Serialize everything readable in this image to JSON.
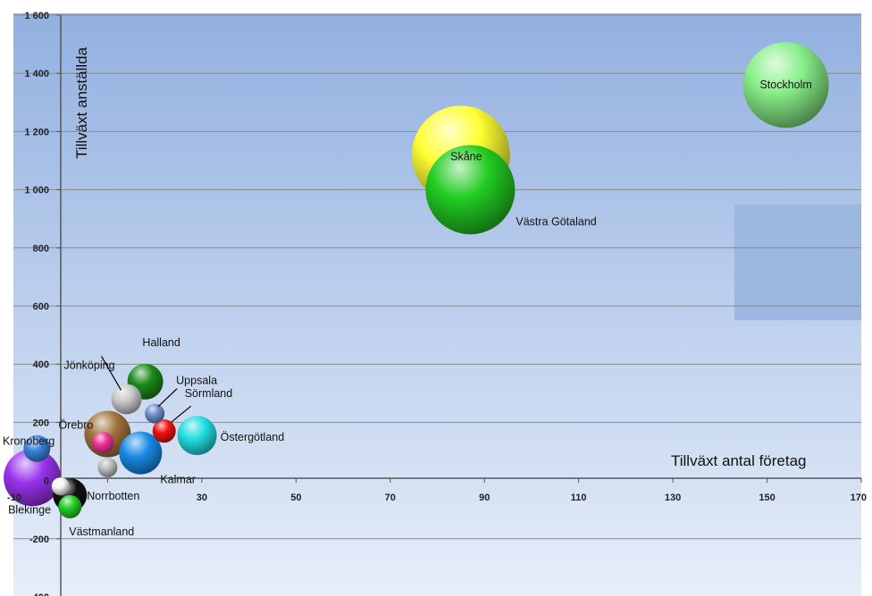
{
  "chart_data": {
    "type": "bubble",
    "title": "",
    "xlabel": "Tillväxt antal företag",
    "ylabel": "Tillväxt anställda",
    "xlim": [
      -10,
      170
    ],
    "ylim": [
      -400,
      1600
    ],
    "x_ticks": [
      -10,
      10,
      30,
      50,
      70,
      90,
      110,
      130,
      150,
      170
    ],
    "y_ticks": [
      -400,
      -200,
      0,
      200,
      400,
      600,
      800,
      1000,
      1200,
      1400,
      1600
    ],
    "x_tick_labels": [
      "-10",
      "",
      "30",
      "50",
      "70",
      "90",
      "110",
      "130",
      "150",
      "170"
    ],
    "y_tick_labels": [
      "-400",
      "-200",
      "0",
      "200",
      "400",
      "600",
      "800",
      "1 000",
      "1 200",
      "1 400",
      "1 600"
    ],
    "grid": true,
    "legend": "none",
    "points": [
      {
        "label": "Stockholm",
        "x": 154,
        "y": 1360,
        "size": 48,
        "color": "#88ee88"
      },
      {
        "label": "Västra Götaland",
        "x": 87,
        "y": 1000,
        "size": 50,
        "color": "#22cc22"
      },
      {
        "label": "Skåne",
        "x": 85,
        "y": 1120,
        "size": 55,
        "color": "#ffff33"
      },
      {
        "label": "Halland",
        "x": 18,
        "y": 340,
        "size": 20,
        "color": "#1a8a1a"
      },
      {
        "label": "Jönköping",
        "x": 14,
        "y": 280,
        "size": 17,
        "color": "#c8c8c8"
      },
      {
        "label": "Uppsala",
        "x": 20,
        "y": 230,
        "size": 11,
        "color": "#6a8fc8"
      },
      {
        "label": "Sörmland",
        "x": 22,
        "y": 170,
        "size": 13,
        "color": "#ee1111"
      },
      {
        "label": "Östergötland",
        "x": 29,
        "y": 155,
        "size": 22,
        "color": "#22dde0"
      },
      {
        "label": "Örebro",
        "x": 10,
        "y": 160,
        "size": 26,
        "color": "#a0723a"
      },
      {
        "label": "Kalmar",
        "x": 17,
        "y": 95,
        "size": 24,
        "color": "#1a8ae6"
      },
      {
        "label": "Kronoberg",
        "x": -5,
        "y": 110,
        "size": 15,
        "color": "#3a82d8"
      },
      {
        "label": "Blekinge",
        "x": -6,
        "y": 10,
        "size": 32,
        "color": "#9a33ee"
      },
      {
        "label": "Västmanland",
        "x": 2,
        "y": -90,
        "size": 13,
        "color": "#22cc22"
      },
      {
        "label": "Norrbotten",
        "x": 2,
        "y": -50,
        "size": 19,
        "color": "#111111"
      },
      {
        "label": "",
        "x": 9,
        "y": 130,
        "size": 12,
        "color": "#ee3399"
      },
      {
        "label": "",
        "x": 10,
        "y": 45,
        "size": 11,
        "color": "#bbbbbb"
      },
      {
        "label": "",
        "x": 0,
        "y": -20,
        "size": 10,
        "color": "#f4f4f4"
      }
    ]
  }
}
